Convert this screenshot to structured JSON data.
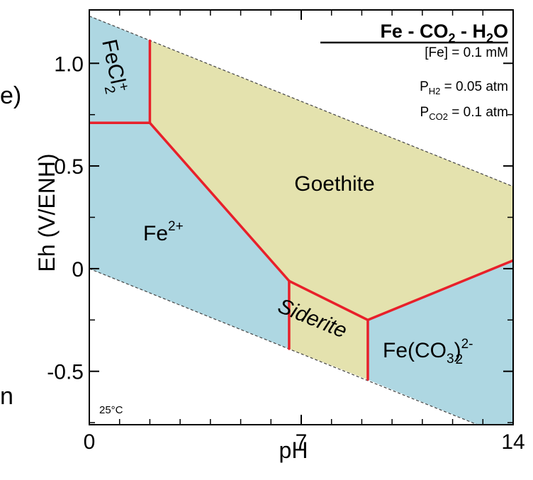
{
  "page": {
    "left_edge_fragments": [
      "e)",
      "n"
    ]
  },
  "chart_data": {
    "type": "area",
    "title": "Fe - CO2 - H2O",
    "title_parts": {
      "a": "Fe - CO",
      "a_sub": "2",
      "b": " - H",
      "b_sub": "2",
      "c": "O"
    },
    "xlabel": "pH",
    "ylabel": "Eh (V/ENH)",
    "xlim": [
      0,
      14
    ],
    "ylim": [
      -0.76,
      1.26
    ],
    "x_ticks": [
      0,
      7,
      14
    ],
    "x_tick_labels": [
      "0",
      "7",
      "14"
    ],
    "x_minor_ticks": [
      1,
      2,
      3,
      4,
      5,
      6,
      8,
      9,
      10,
      11,
      12,
      13
    ],
    "y_ticks": [
      -0.5,
      0,
      0.5,
      1.0
    ],
    "y_tick_labels": [
      "-0.5",
      "0",
      "0.5",
      "1.0"
    ],
    "y_minor_ticks": [
      -0.75,
      -0.25,
      0.25,
      0.75
    ],
    "temperature_label": "25°C",
    "conditions": {
      "fe": {
        "base": "[Fe] = 0.1 mM"
      },
      "ph2": {
        "p": "P",
        "sub": "H2",
        "rest": " = 0.05 atm"
      },
      "pco2": {
        "p": "P",
        "sub": "CO2",
        "rest": " = 0.1 atm"
      }
    },
    "water_stability": {
      "upper_line": [
        [
          0,
          1.23
        ],
        [
          14,
          0.4
        ]
      ],
      "lower_line": [
        [
          0,
          0.0
        ],
        [
          14,
          -0.83
        ]
      ]
    },
    "regions": [
      {
        "name": "FeCl2+",
        "label": {
          "base": "FeCl",
          "sub": "2",
          "sup": "+"
        },
        "color": "#aed7e2",
        "polygon": [
          [
            0,
            1.23
          ],
          [
            2.0,
            1.11
          ],
          [
            2.0,
            0.71
          ],
          [
            0,
            0.71
          ]
        ]
      },
      {
        "name": "Goethite",
        "label": {
          "base": "Goethite"
        },
        "color": "#e4e2ae",
        "polygon": [
          [
            2.0,
            1.11
          ],
          [
            14,
            0.4
          ],
          [
            14,
            0.04
          ],
          [
            9.2,
            -0.25
          ],
          [
            6.6,
            -0.06
          ],
          [
            2.0,
            0.71
          ]
        ]
      },
      {
        "name": "Fe2+",
        "label": {
          "base": "Fe",
          "sup": "2+"
        },
        "color": "#aed7e2",
        "polygon": [
          [
            0,
            0.71
          ],
          [
            2.0,
            0.71
          ],
          [
            6.6,
            -0.06
          ],
          [
            6.6,
            -0.39
          ],
          [
            0,
            0.0
          ]
        ]
      },
      {
        "name": "Siderite",
        "label": {
          "base": "Siderite"
        },
        "color": "#e4e2ae",
        "polygon": [
          [
            6.6,
            -0.06
          ],
          [
            9.2,
            -0.25
          ],
          [
            9.2,
            -0.54
          ],
          [
            6.6,
            -0.39
          ]
        ]
      },
      {
        "name": "Fe(CO3)2 2-",
        "label": {
          "base": "Fe(CO",
          "sub1": "3",
          "mid": ")",
          "sub2": "2",
          "sup": "2-"
        },
        "color": "#aed7e2",
        "polygon": [
          [
            9.2,
            -0.25
          ],
          [
            14,
            0.04
          ],
          [
            14,
            -0.83
          ],
          [
            9.2,
            -0.54
          ]
        ]
      }
    ],
    "boundaries": [
      [
        [
          2.0,
          1.11
        ],
        [
          2.0,
          0.71
        ]
      ],
      [
        [
          0,
          0.71
        ],
        [
          2.0,
          0.71
        ]
      ],
      [
        [
          2.0,
          0.71
        ],
        [
          6.6,
          -0.06
        ]
      ],
      [
        [
          6.6,
          -0.06
        ],
        [
          6.6,
          -0.39
        ]
      ],
      [
        [
          6.6,
          -0.06
        ],
        [
          9.2,
          -0.25
        ]
      ],
      [
        [
          9.2,
          -0.25
        ],
        [
          9.2,
          -0.54
        ]
      ],
      [
        [
          9.2,
          -0.25
        ],
        [
          14,
          0.04
        ]
      ]
    ],
    "colors": {
      "boundary": "#e8202a",
      "water_line": "#444444",
      "frame": "#000000"
    }
  }
}
